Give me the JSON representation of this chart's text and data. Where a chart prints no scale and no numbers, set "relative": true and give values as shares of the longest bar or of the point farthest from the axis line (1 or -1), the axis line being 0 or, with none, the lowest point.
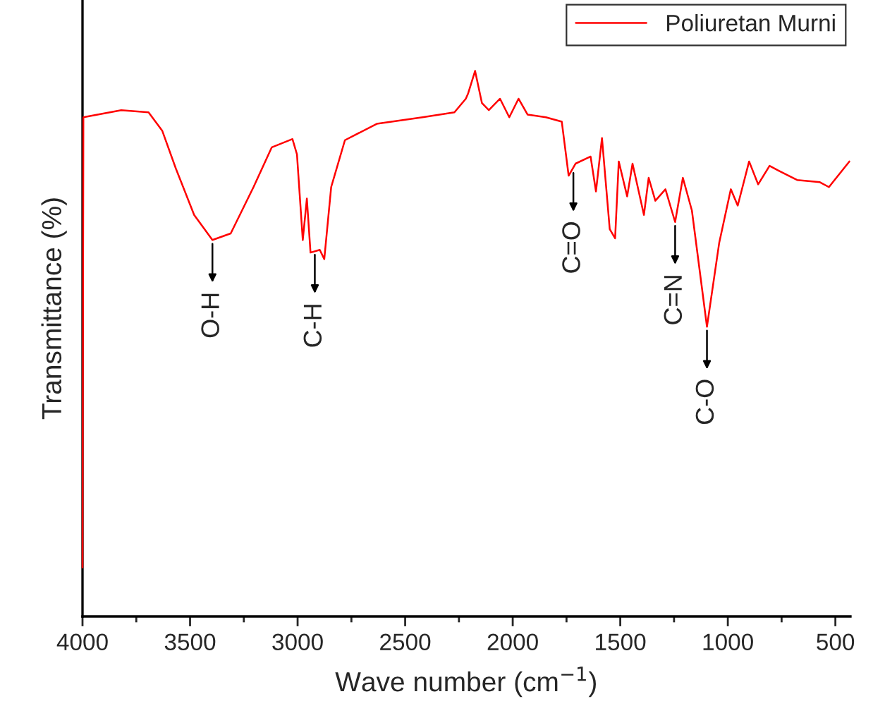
{
  "chart_data": {
    "type": "line",
    "relative": true,
    "xlabel": "Wave number (cm$^{−1}$)",
    "ylabel": "Transmittance (%)",
    "xlim": [
      4000,
      430
    ],
    "xticks": [
      4000,
      {
        "value": 3750,
        "label": null
      },
      3500,
      {
        "value": 3250,
        "label": null
      },
      3000,
      {
        "value": 2750,
        "label": null
      },
      2500,
      {
        "value": 2250,
        "label": null
      },
      2000,
      {
        "value": 1750,
        "label": null
      },
      1500,
      {
        "value": 1250,
        "label": null
      },
      1000,
      {
        "value": 750,
        "label": null
      },
      500
    ],
    "grid": false,
    "legend": "top right",
    "marker": "none",
    "line_style": "solid",
    "tick_labels": "x",
    "series": [
      {
        "name": "Poliuretan Murni",
        "color": "#ff0000",
        "x": [
          4000,
          3996,
          3820,
          3693,
          3629,
          3566,
          3481,
          3396,
          3311,
          3205,
          3120,
          3024,
          3003,
          2976,
          2957,
          2940,
          2897,
          2876,
          2844,
          2780,
          2632,
          2419,
          2271,
          2218,
          2207,
          2175,
          2143,
          2111,
          2059,
          2016,
          1973,
          1931,
          1846,
          1772,
          1740,
          1708,
          1638,
          1613,
          1585,
          1549,
          1524,
          1507,
          1468,
          1443,
          1390,
          1368,
          1337,
          1290,
          1245,
          1209,
          1167,
          1097,
          1040,
          986,
          954,
          901,
          859,
          806,
          763,
          678,
          572,
          530,
          435
        ],
        "values": [
          0.09,
          0.915,
          0.928,
          0.924,
          0.89,
          0.821,
          0.736,
          0.69,
          0.702,
          0.787,
          0.86,
          0.875,
          0.847,
          0.69,
          0.766,
          0.667,
          0.672,
          0.655,
          0.787,
          0.873,
          0.903,
          0.915,
          0.924,
          0.949,
          0.959,
          1.0,
          0.941,
          0.928,
          0.949,
          0.915,
          0.949,
          0.92,
          0.915,
          0.907,
          0.808,
          0.83,
          0.843,
          0.779,
          0.877,
          0.71,
          0.693,
          0.834,
          0.77,
          0.83,
          0.736,
          0.804,
          0.762,
          0.783,
          0.723,
          0.804,
          0.744,
          0.531,
          0.685,
          0.783,
          0.753,
          0.834,
          0.792,
          0.826,
          0.817,
          0.8,
          0.796,
          0.787,
          0.834
        ]
      }
    ],
    "annotations": [
      {
        "text": "O-H",
        "x": 3396,
        "y": 0.69
      },
      {
        "text": "C-H",
        "x": 2920,
        "y": 0.67
      },
      {
        "text": "C=O",
        "x": 1718,
        "y": 0.82
      },
      {
        "text": "C=N",
        "x": 1245,
        "y": 0.723
      },
      {
        "text": "C-O",
        "x": 1097,
        "y": 0.531
      }
    ]
  }
}
